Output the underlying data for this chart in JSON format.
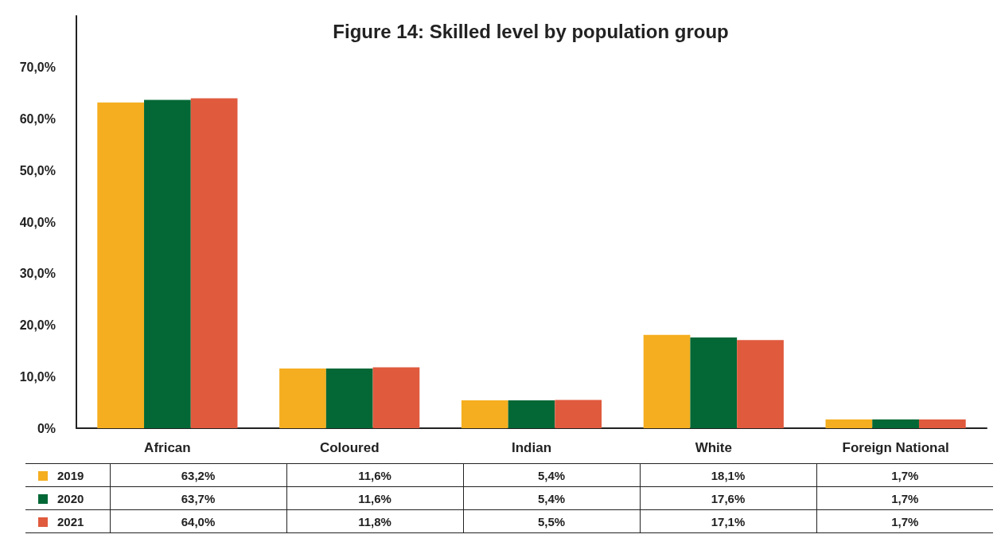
{
  "chart_data": {
    "type": "bar",
    "title": "Figure 14: Skilled level by population group",
    "categories": [
      "African",
      "Coloured",
      "Indian",
      "White",
      "Foreign National"
    ],
    "series": [
      {
        "name": "2019",
        "color": "#f5ae1f",
        "values": [
          63.2,
          11.6,
          5.4,
          18.1,
          1.7
        ],
        "value_labels": [
          "63,2%",
          "11,6%",
          "5,4%",
          "18,1%",
          "1,7%"
        ]
      },
      {
        "name": "2020",
        "color": "#036836",
        "values": [
          63.7,
          11.6,
          5.4,
          17.6,
          1.7
        ],
        "value_labels": [
          "63,7%",
          "11,6%",
          "5,4%",
          "17,6%",
          "1,7%"
        ]
      },
      {
        "name": "2021",
        "color": "#e05a3e",
        "values": [
          64.0,
          11.8,
          5.5,
          17.1,
          1.7
        ],
        "value_labels": [
          "64,0%",
          "11,8%",
          "5,5%",
          "17,1%",
          "1,7%"
        ]
      }
    ],
    "ylim": [
      0,
      80
    ],
    "yticks": [
      {
        "value": 0,
        "label": "0%"
      },
      {
        "value": 10,
        "label": "10,0%"
      },
      {
        "value": 20,
        "label": "20,0%"
      },
      {
        "value": 30,
        "label": "30,0%"
      },
      {
        "value": 40,
        "label": "40,0%"
      },
      {
        "value": 50,
        "label": "50,0%"
      },
      {
        "value": 60,
        "label": "60,0%"
      },
      {
        "value": 70,
        "label": "70,0%"
      }
    ],
    "grid": false,
    "legend": "bottom"
  }
}
